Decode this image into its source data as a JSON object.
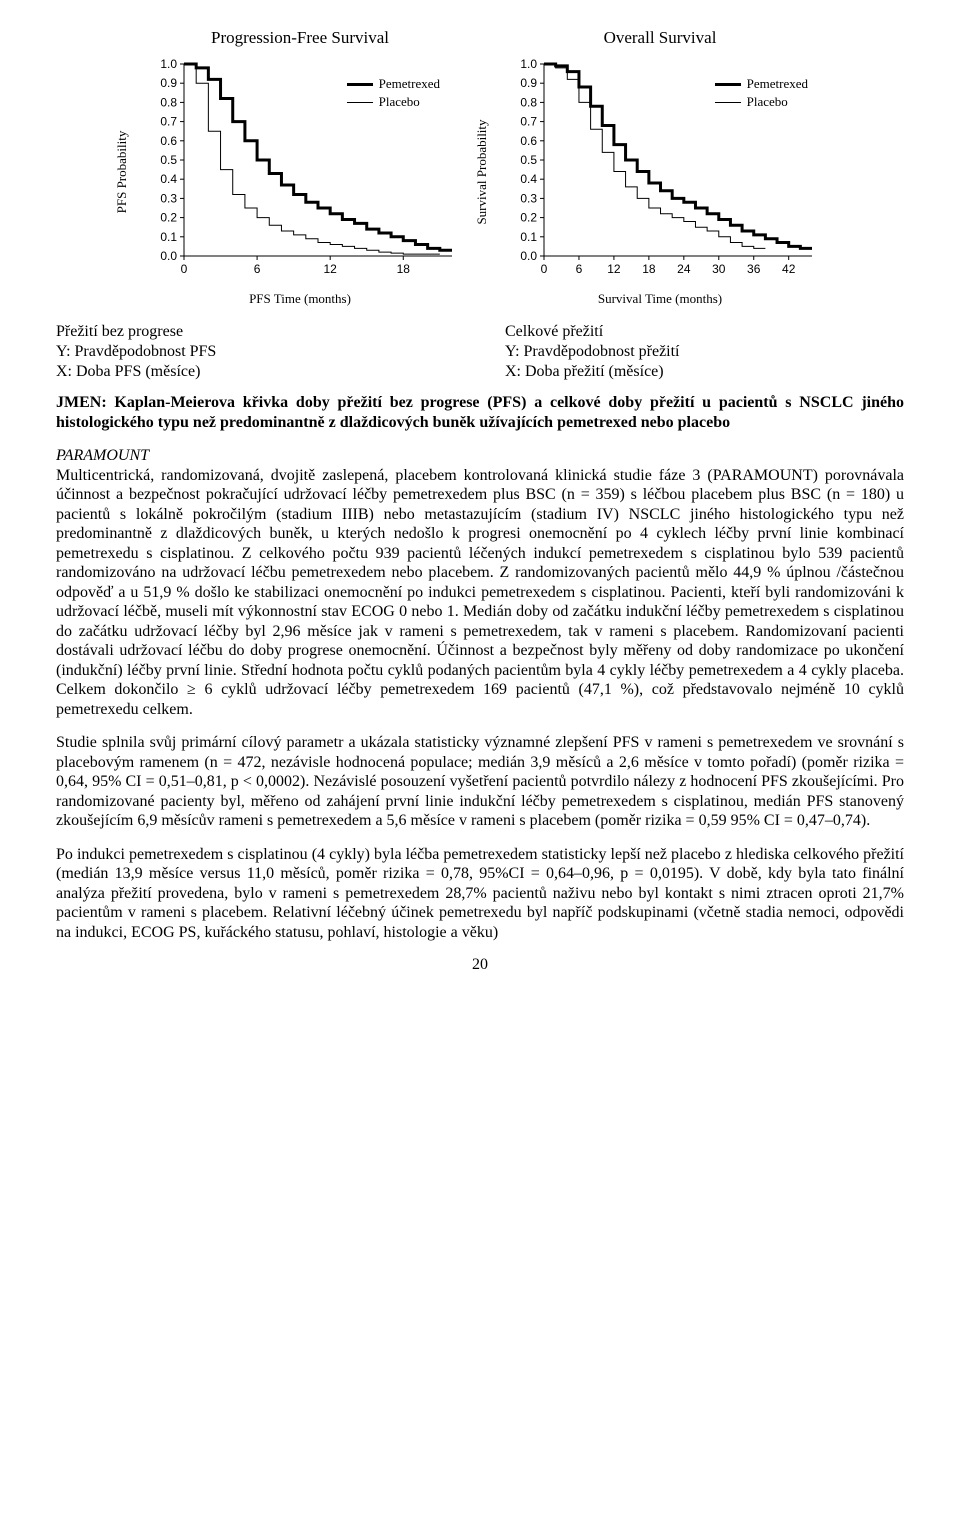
{
  "charts": {
    "pfs": {
      "type": "kaplan-meier",
      "title": "Progression-Free Survival",
      "ylabel": "PFS Probability",
      "xlabel": "PFS Time (months)",
      "legend": [
        {
          "label": "Pemetrexed",
          "width": 3,
          "color": "#000000"
        },
        {
          "label": "Placebo",
          "width": 1,
          "color": "#000000"
        }
      ],
      "ylim": [
        0.0,
        1.0
      ],
      "ytick_step": 0.1,
      "yticks": [
        "0.0",
        "0.1",
        "0.2",
        "0.3",
        "0.4",
        "0.5",
        "0.6",
        "0.7",
        "0.8",
        "0.9",
        "1.0"
      ],
      "xlim": [
        0,
        22
      ],
      "xticks": [
        0,
        6,
        12,
        18
      ],
      "tick_fontsize": 12,
      "background_color": "#ffffff",
      "series": {
        "pemetrexed": {
          "color": "#000000",
          "line_width": 3,
          "points": [
            [
              0,
              1.0
            ],
            [
              1,
              0.98
            ],
            [
              2,
              0.92
            ],
            [
              3,
              0.82
            ],
            [
              4,
              0.7
            ],
            [
              5,
              0.6
            ],
            [
              6,
              0.5
            ],
            [
              7,
              0.43
            ],
            [
              8,
              0.37
            ],
            [
              9,
              0.32
            ],
            [
              10,
              0.28
            ],
            [
              11,
              0.25
            ],
            [
              12,
              0.22
            ],
            [
              13,
              0.19
            ],
            [
              14,
              0.17
            ],
            [
              15,
              0.14
            ],
            [
              16,
              0.12
            ],
            [
              17,
              0.1
            ],
            [
              18,
              0.08
            ],
            [
              19,
              0.06
            ],
            [
              20,
              0.04
            ],
            [
              21,
              0.03
            ],
            [
              22,
              0.03
            ]
          ]
        },
        "placebo": {
          "color": "#000000",
          "line_width": 1,
          "points": [
            [
              0,
              1.0
            ],
            [
              1,
              0.9
            ],
            [
              2,
              0.65
            ],
            [
              3,
              0.45
            ],
            [
              4,
              0.32
            ],
            [
              5,
              0.25
            ],
            [
              6,
              0.2
            ],
            [
              7,
              0.16
            ],
            [
              8,
              0.13
            ],
            [
              9,
              0.11
            ],
            [
              10,
              0.09
            ],
            [
              11,
              0.07
            ],
            [
              12,
              0.06
            ],
            [
              13,
              0.05
            ],
            [
              14,
              0.04
            ],
            [
              15,
              0.03
            ],
            [
              16,
              0.02
            ],
            [
              17,
              0.015
            ],
            [
              18,
              0.01
            ],
            [
              19,
              0.01
            ],
            [
              20,
              0.01
            ],
            [
              21,
              0.01
            ]
          ]
        }
      }
    },
    "os": {
      "type": "kaplan-meier",
      "title": "Overall Survival",
      "ylabel": "Survival Probability",
      "xlabel": "Survival Time (months)",
      "legend": [
        {
          "label": "Pemetrexed",
          "width": 3,
          "color": "#000000"
        },
        {
          "label": "Placebo",
          "width": 1,
          "color": "#000000"
        }
      ],
      "ylim": [
        0.0,
        1.0
      ],
      "ytick_step": 0.1,
      "yticks": [
        "0.0",
        "0.1",
        "0.2",
        "0.3",
        "0.4",
        "0.5",
        "0.6",
        "0.7",
        "0.8",
        "0.9",
        "1.0"
      ],
      "xlim": [
        0,
        46
      ],
      "xticks": [
        0,
        6,
        12,
        18,
        24,
        30,
        36,
        42
      ],
      "tick_fontsize": 12,
      "background_color": "#ffffff",
      "series": {
        "pemetrexed": {
          "color": "#000000",
          "line_width": 3,
          "points": [
            [
              0,
              1.0
            ],
            [
              2,
              0.99
            ],
            [
              4,
              0.96
            ],
            [
              6,
              0.88
            ],
            [
              8,
              0.78
            ],
            [
              10,
              0.68
            ],
            [
              12,
              0.58
            ],
            [
              14,
              0.5
            ],
            [
              16,
              0.44
            ],
            [
              18,
              0.38
            ],
            [
              20,
              0.34
            ],
            [
              22,
              0.3
            ],
            [
              24,
              0.28
            ],
            [
              26,
              0.25
            ],
            [
              28,
              0.22
            ],
            [
              30,
              0.19
            ],
            [
              32,
              0.16
            ],
            [
              34,
              0.13
            ],
            [
              36,
              0.11
            ],
            [
              38,
              0.09
            ],
            [
              40,
              0.07
            ],
            [
              42,
              0.05
            ],
            [
              44,
              0.04
            ],
            [
              46,
              0.04
            ]
          ]
        },
        "placebo": {
          "color": "#000000",
          "line_width": 1,
          "points": [
            [
              0,
              1.0
            ],
            [
              2,
              0.98
            ],
            [
              4,
              0.92
            ],
            [
              6,
              0.8
            ],
            [
              8,
              0.66
            ],
            [
              10,
              0.54
            ],
            [
              12,
              0.44
            ],
            [
              14,
              0.36
            ],
            [
              16,
              0.3
            ],
            [
              18,
              0.25
            ],
            [
              20,
              0.22
            ],
            [
              22,
              0.2
            ],
            [
              24,
              0.18
            ],
            [
              26,
              0.15
            ],
            [
              28,
              0.13
            ],
            [
              30,
              0.1
            ],
            [
              32,
              0.07
            ],
            [
              34,
              0.05
            ],
            [
              36,
              0.04
            ],
            [
              38,
              0.04
            ]
          ]
        }
      }
    }
  },
  "axis_legend": {
    "left": {
      "l1": "Přežití bez progrese",
      "l2": "Y: Pravděpodobnost PFS",
      "l3": "X: Doba PFS (měsíce)"
    },
    "right": {
      "l1": "Celkové přežití",
      "l2": "Y: Pravděpodobnost přežití",
      "l3": "X: Doba přežití (měsíce)"
    }
  },
  "figure_caption": {
    "lead": "JMEN: Kaplan-Meierova křivka doby přežití bez progrese (PFS) a celkové doby přežití u pacientů s NSCLC jiného histologického typu než predominantně z dlaždicových buněk užívajících pemetrexed nebo placebo"
  },
  "paramount_heading": "PARAMOUNT",
  "para1": "Multicentrická, randomizovaná, dvojitě zaslepená, placebem kontrolovaná klinická studie fáze 3 (PARAMOUNT) porovnávala účinnost a bezpečnost pokračující udržovací léčby pemetrexedem plus BSC (n = 359) s léčbou placebem plus BSC (n = 180) u pacientů s lokálně pokročilým (stadium IIIB) nebo metastazujícím (stadium IV) NSCLC jiného histologického typu než predominantně z dlaždicových buněk, u kterých nedošlo k progresi onemocnění po 4 cyklech léčby první linie kombinací pemetrexedu s cisplatinou. Z celkového počtu 939 pacientů léčených indukcí pemetrexedem s cisplatinou bylo 539 pacientů randomizováno na udržovací léčbu pemetrexedem nebo placebem. Z randomizovaných pacientů mělo 44,9 % úplnou /částečnou odpověď a u 51,9 % došlo ke stabilizaci onemocnění po indukci pemetrexedem s cisplatinou. Pacienti, kteří byli randomizováni k udržovací léčbě, museli mít výkonnostní stav ECOG 0 nebo 1. Medián doby od začátku indukční léčby pemetrexedem s cisplatinou do začátku udržovací léčby byl 2,96 měsíce jak v rameni s pemetrexedem, tak v rameni s placebem. Randomizovaní pacienti dostávali udržovací léčbu do doby progrese onemocnění. Účinnost a bezpečnost byly měřeny od doby randomizace po ukončení (indukční) léčby první linie. Střední hodnota počtu cyklů podaných pacientům byla 4 cykly léčby pemetrexedem a 4 cykly placeba. Celkem dokončilo ≥ 6 cyklů udržovací léčby pemetrexedem 169 pacientů (47,1 %), což představovalo nejméně 10 cyklů pemetrexedu celkem.",
  "para2": "Studie splnila svůj primární cílový parametr a ukázala statisticky významné zlepšení PFS v rameni s pemetrexedem ve srovnání s placebovým ramenem (n = 472, nezávisle hodnocená populace; medián 3,9 měsíců a 2,6 měsíce v tomto pořadí) (poměr rizika = 0,64, 95% CI = 0,51–0,81, p < 0,0002). Nezávislé posouzení vyšetření pacientů potvrdilo nálezy z hodnocení PFS zkoušejícími. Pro randomizované pacienty byl, měřeno od zahájení první linie indukční léčby pemetrexedem s cisplatinou, medián PFS stanovený zkoušejícím 6,9 měsícův rameni s pemetrexedem a 5,6 měsíce v rameni s placebem (poměr rizika = 0,59 95% CI = 0,47–0,74).",
  "para3": "Po indukci pemetrexedem s cisplatinou (4 cykly) byla léčba pemetrexedem statisticky lepší než placebo z hlediska celkového přežití (medián 13,9 měsíce versus 11,0 měsíců, poměr rizika = 0,78, 95%CI = 0,64–0,96, p = 0,0195). V době, kdy byla tato finální analýza přežití provedena, bylo v rameni s pemetrexedem 28,7% pacientů naživu nebo byl kontakt s nimi ztracen oproti 21,7% pacientům v rameni s placebem. Relativní léčebný účinek pemetrexedu byl napříč podskupinami (včetně stadia nemoci, odpovědi na indukci, ECOG PS, kuřáckého statusu, pohlaví, histologie a věku)",
  "page_number": "20"
}
